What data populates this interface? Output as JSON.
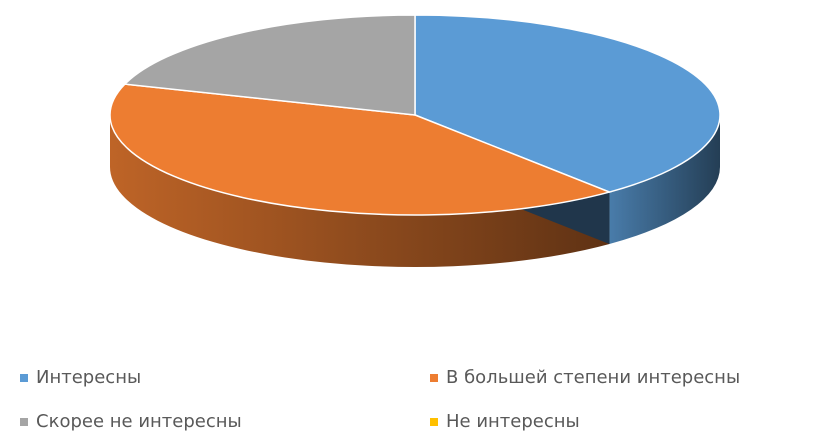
{
  "chart_data": {
    "type": "pie3d",
    "categories": [
      "Интересны",
      "В большей степени интересны",
      "Скорее не интересны",
      "Не интересны"
    ],
    "values": [
      39,
      41,
      20,
      0
    ],
    "colors": [
      "#5b9bd5",
      "#ed7d31",
      "#a5a5a5",
      "#ffc000"
    ],
    "legend": "bottom"
  }
}
